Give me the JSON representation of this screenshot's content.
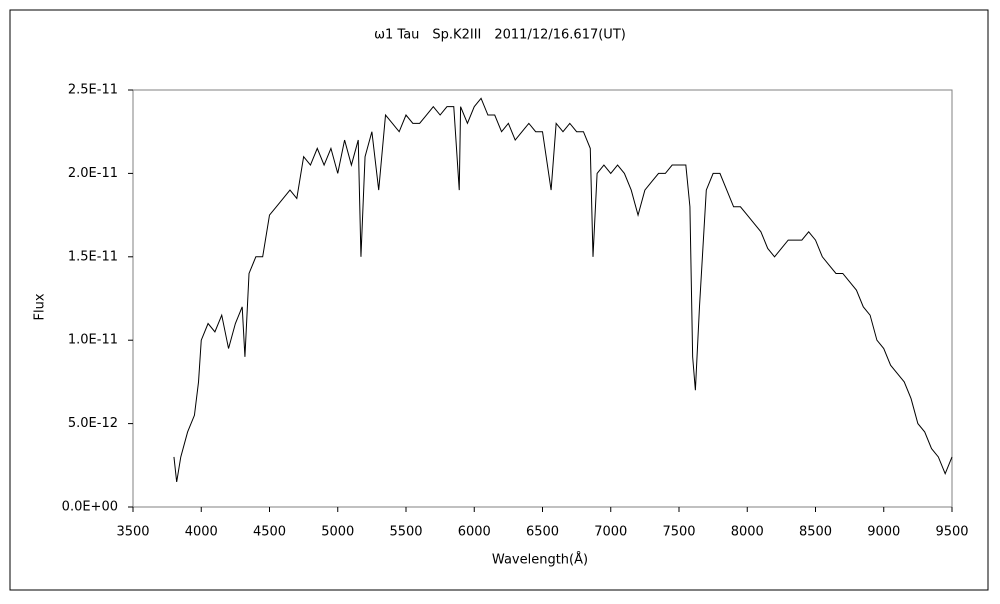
{
  "chart_data": {
    "type": "line",
    "title": "ω1 Tau　Sp.K2III　2011/12/16.617(UT)",
    "x_label": "Wavelength(Å)",
    "y_label": "Flux",
    "color": "#000000",
    "x": [
      3800,
      3820,
      3850,
      3900,
      3950,
      3980,
      4000,
      4050,
      4100,
      4150,
      4200,
      4250,
      4300,
      4320,
      4350,
      4400,
      4450,
      4500,
      4550,
      4600,
      4650,
      4700,
      4750,
      4800,
      4850,
      4900,
      4950,
      5000,
      5050,
      5100,
      5150,
      5170,
      5200,
      5250,
      5300,
      5350,
      5400,
      5450,
      5500,
      5550,
      5600,
      5650,
      5700,
      5750,
      5800,
      5850,
      5890,
      5900,
      5950,
      6000,
      6050,
      6100,
      6150,
      6200,
      6250,
      6300,
      6350,
      6400,
      6450,
      6500,
      6563,
      6600,
      6650,
      6700,
      6750,
      6800,
      6850,
      6870,
      6900,
      6950,
      7000,
      7050,
      7100,
      7150,
      7200,
      7250,
      7300,
      7350,
      7400,
      7450,
      7500,
      7550,
      7580,
      7600,
      7620,
      7650,
      7700,
      7750,
      7800,
      7850,
      7900,
      7950,
      8000,
      8050,
      8100,
      8150,
      8200,
      8250,
      8300,
      8350,
      8400,
      8450,
      8500,
      8550,
      8600,
      8650,
      8700,
      8750,
      8800,
      8850,
      8900,
      8950,
      9000,
      9050,
      9100,
      9150,
      9200,
      9250,
      9300,
      9350,
      9400,
      9450,
      9500
    ],
    "values": [
      3e-12,
      1.5e-12,
      3e-12,
      4.5e-12,
      5.5e-12,
      7.5e-12,
      1e-11,
      1.1e-11,
      1.05e-11,
      1.15e-11,
      9.5e-12,
      1.1e-11,
      1.2e-11,
      9e-12,
      1.4e-11,
      1.5e-11,
      1.5e-11,
      1.75e-11,
      1.8e-11,
      1.85e-11,
      1.9e-11,
      1.85e-11,
      2.1e-11,
      2.05e-11,
      2.15e-11,
      2.05e-11,
      2.15e-11,
      2e-11,
      2.2e-11,
      2.05e-11,
      2.2e-11,
      1.5e-11,
      2.1e-11,
      2.25e-11,
      1.9e-11,
      2.35e-11,
      2.3e-11,
      2.25e-11,
      2.35e-11,
      2.3e-11,
      2.3e-11,
      2.35e-11,
      2.4e-11,
      2.35e-11,
      2.4e-11,
      2.4e-11,
      1.9e-11,
      2.4e-11,
      2.3e-11,
      2.4e-11,
      2.45e-11,
      2.35e-11,
      2.35e-11,
      2.25e-11,
      2.3e-11,
      2.2e-11,
      2.25e-11,
      2.3e-11,
      2.25e-11,
      2.25e-11,
      1.9e-11,
      2.3e-11,
      2.25e-11,
      2.3e-11,
      2.25e-11,
      2.25e-11,
      2.15e-11,
      1.5e-11,
      2e-11,
      2.05e-11,
      2e-11,
      2.05e-11,
      2e-11,
      1.9e-11,
      1.75e-11,
      1.9e-11,
      1.95e-11,
      2e-11,
      2e-11,
      2.05e-11,
      2.05e-11,
      2.05e-11,
      1.8e-11,
      9e-12,
      7e-12,
      1.2e-11,
      1.9e-11,
      2e-11,
      2e-11,
      1.9e-11,
      1.8e-11,
      1.8e-11,
      1.75e-11,
      1.7e-11,
      1.65e-11,
      1.55e-11,
      1.5e-11,
      1.55e-11,
      1.6e-11,
      1.6e-11,
      1.6e-11,
      1.65e-11,
      1.6e-11,
      1.5e-11,
      1.45e-11,
      1.4e-11,
      1.4e-11,
      1.35e-11,
      1.3e-11,
      1.2e-11,
      1.15e-11,
      1e-11,
      9.5e-12,
      8.5e-12,
      8e-12,
      7.5e-12,
      6.5e-12,
      5e-12,
      4.5e-12,
      3.5e-12,
      3e-12,
      2e-12,
      3e-12
    ],
    "xlim": [
      3500,
      9500
    ],
    "xticks": [
      3500,
      4000,
      4500,
      5000,
      5500,
      6000,
      6500,
      7000,
      7500,
      8000,
      8500,
      9000,
      9500
    ],
    "ylim": [
      0,
      2.5e-11
    ],
    "yticks": [
      {
        "value": 0,
        "label": "0.0E+00"
      },
      {
        "value": 5e-12,
        "label": "5.0E-12"
      },
      {
        "value": 1e-11,
        "label": "1.0E-11"
      },
      {
        "value": 1.5e-11,
        "label": "1.5E-11"
      },
      {
        "value": 2e-11,
        "label": "2.0E-11"
      },
      {
        "value": 2.5e-11,
        "label": "2.5E-11"
      }
    ]
  }
}
